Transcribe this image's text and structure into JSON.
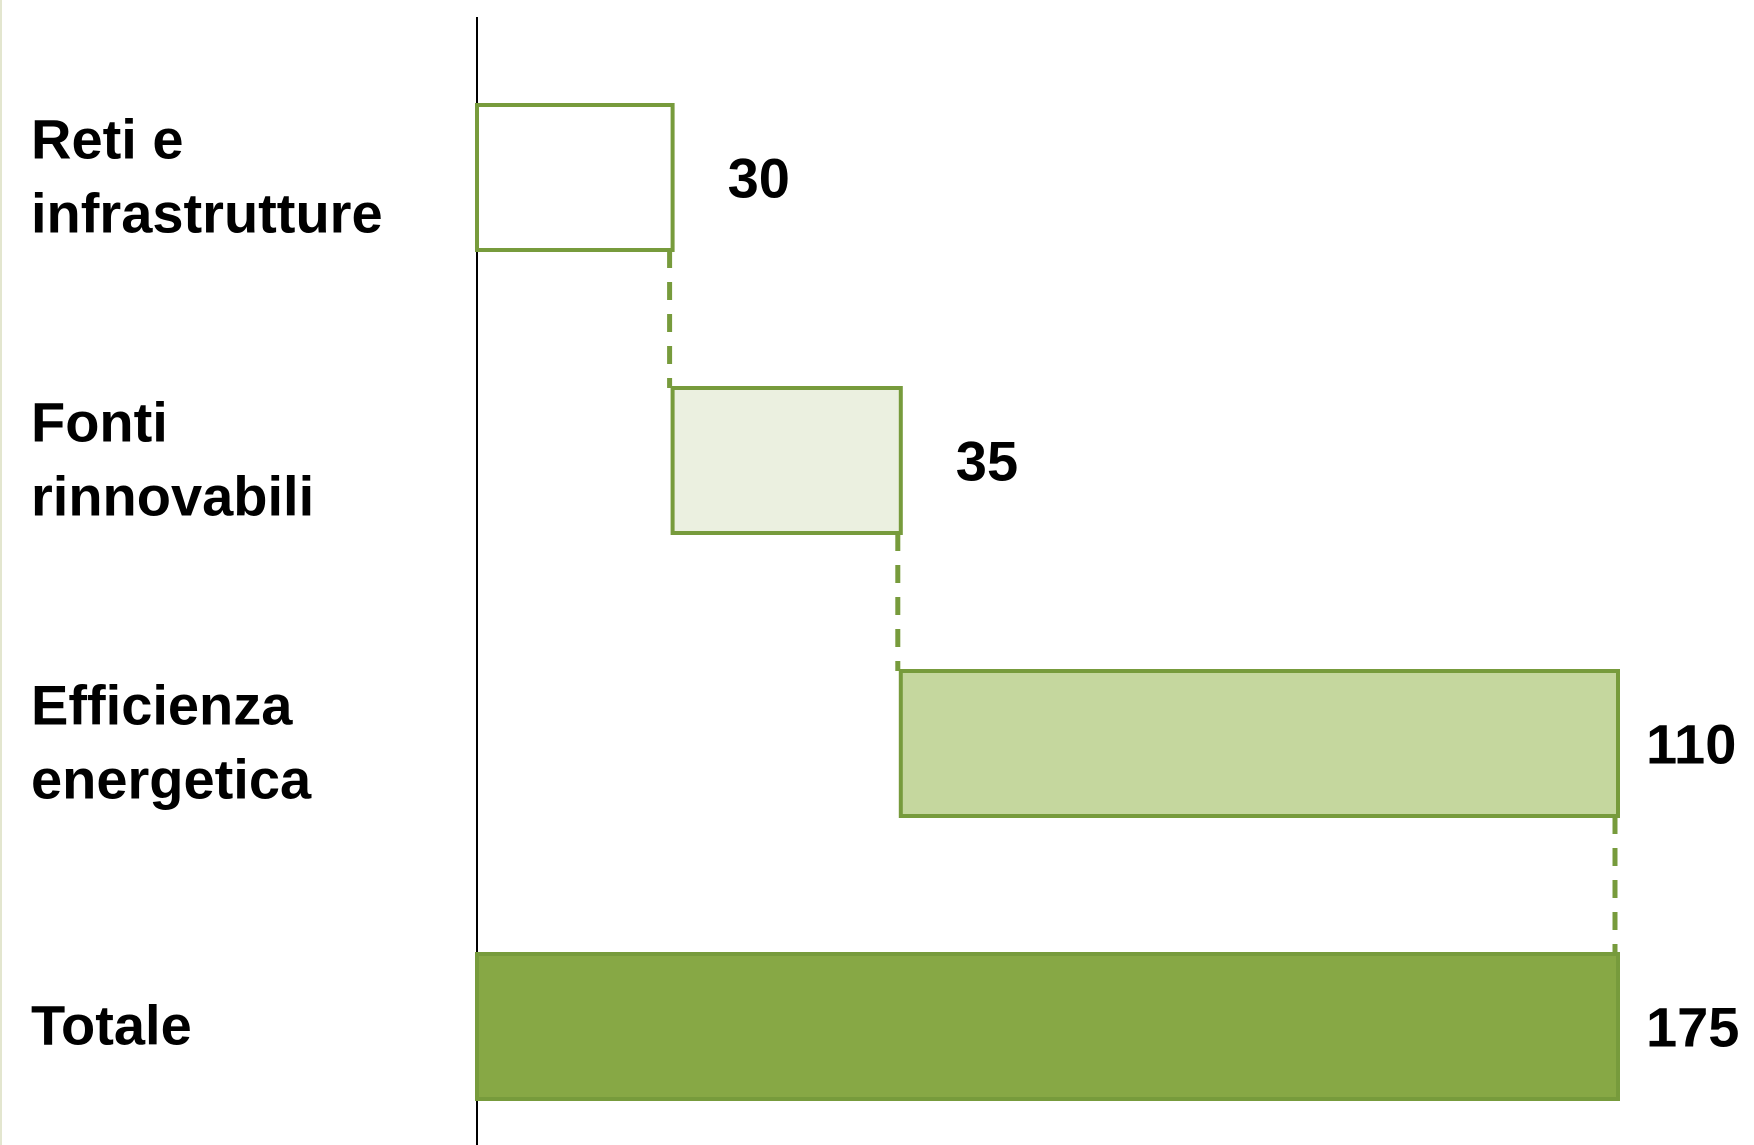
{
  "chart_data": {
    "type": "bar",
    "subtype": "waterfall",
    "orientation": "horizontal",
    "title": "",
    "xlabel": "",
    "ylabel": "",
    "categories": [
      [
        "Reti e",
        "infrastrutture"
      ],
      [
        "Fonti",
        "rinnovabili"
      ],
      [
        "Efficienza",
        "energetica"
      ],
      [
        "Totale"
      ]
    ],
    "values": [
      30,
      35,
      110,
      175
    ],
    "value_labels": [
      "30",
      "35",
      "110",
      "175"
    ],
    "bases": [
      0,
      30,
      65,
      0
    ],
    "xlim": [
      0,
      175
    ],
    "grid": false,
    "legend": "none",
    "colors": {
      "stroke": "#779b3c",
      "fills": [
        "#ffffff",
        "#ebf0e0",
        "#c5d79e",
        "#87a845"
      ],
      "connector": "#779b3c",
      "axis": "#000000",
      "left_rule": "#e3e6cf"
    }
  }
}
